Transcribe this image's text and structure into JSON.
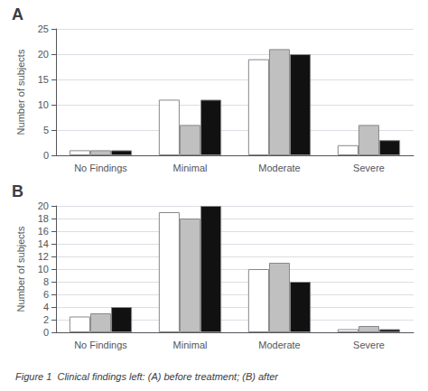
{
  "chart_data": [
    {
      "type": "bar",
      "title": "A",
      "ylabel": "Number of subjects",
      "categories": [
        "No Findings",
        "Minimal",
        "Moderate",
        "Severe"
      ],
      "series": [
        {
          "color": "#ffffff",
          "values": [
            1,
            11,
            19,
            2
          ]
        },
        {
          "color": "#c0c0c0",
          "values": [
            1,
            6,
            21,
            6
          ]
        },
        {
          "color": "#111111",
          "values": [
            1,
            11,
            20,
            3
          ]
        }
      ],
      "ylim": [
        0,
        25
      ],
      "yticks": [
        0,
        5,
        10,
        15,
        20,
        25
      ],
      "grid": true
    },
    {
      "type": "bar",
      "title": "B",
      "ylabel": "Number of subjects",
      "categories": [
        "No Findings",
        "Minimal",
        "Moderate",
        "Severe"
      ],
      "series": [
        {
          "color": "#ffffff",
          "values": [
            2.5,
            19,
            10,
            0.5
          ]
        },
        {
          "color": "#c0c0c0",
          "values": [
            3,
            18,
            11,
            1
          ]
        },
        {
          "color": "#111111",
          "values": [
            4,
            20,
            8,
            0.5
          ]
        }
      ],
      "ylim": [
        0,
        20
      ],
      "yticks": [
        0,
        2,
        4,
        6,
        8,
        10,
        12,
        14,
        16,
        18,
        20
      ],
      "grid": true,
      "annotation": "Figure 1  Clinical findings left: (A) before treatment; (B) after"
    }
  ]
}
